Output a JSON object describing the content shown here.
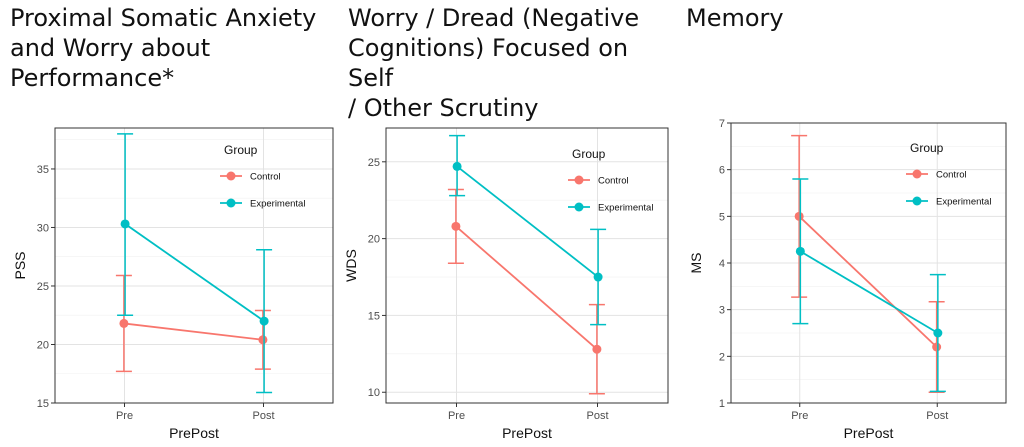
{
  "colors": {
    "Control": "#F8766D",
    "Experimental": "#00BFC4"
  },
  "chart_data": [
    {
      "type": "line",
      "title": "Proximal Somatic Anxiety\nand Worry about\nPerformance*",
      "xlabel": "PrePost",
      "ylabel": "PSS",
      "categories": [
        "Pre",
        "Post"
      ],
      "ylim": [
        15,
        38.5
      ],
      "yticks": [
        15,
        20,
        25,
        30,
        35
      ],
      "legend_title": "Group",
      "series": [
        {
          "name": "Control",
          "values": [
            21.8,
            20.4
          ],
          "err_low": [
            17.7,
            17.9
          ],
          "err_high": [
            25.9,
            22.9
          ]
        },
        {
          "name": "Experimental",
          "values": [
            30.3,
            22.0
          ],
          "err_low": [
            22.5,
            15.9
          ],
          "err_high": [
            38.0,
            28.1
          ]
        }
      ]
    },
    {
      "type": "line",
      "title": "Worry / Dread (Negative\nCognitions) Focused on Self\n/ Other Scrutiny",
      "xlabel": "PrePost",
      "ylabel": "WDS",
      "categories": [
        "Pre",
        "Post"
      ],
      "ylim": [
        9.3,
        27.2
      ],
      "yticks": [
        10,
        15,
        20,
        25
      ],
      "legend_title": "Group",
      "series": [
        {
          "name": "Control",
          "values": [
            20.8,
            12.8
          ],
          "err_low": [
            18.4,
            9.9
          ],
          "err_high": [
            23.2,
            15.7
          ]
        },
        {
          "name": "Experimental",
          "values": [
            24.7,
            17.5
          ],
          "err_low": [
            22.8,
            14.4
          ],
          "err_high": [
            26.7,
            20.6
          ]
        }
      ]
    },
    {
      "type": "line",
      "title": "Memory",
      "xlabel": "PrePost",
      "ylabel": "MS",
      "categories": [
        "Pre",
        "Post"
      ],
      "ylim": [
        1,
        7
      ],
      "yticks": [
        1,
        2,
        3,
        4,
        5,
        6,
        7
      ],
      "legend_title": "Group",
      "series": [
        {
          "name": "Control",
          "values": [
            5.0,
            2.2
          ],
          "err_low": [
            3.27,
            1.23
          ],
          "err_high": [
            6.73,
            3.17
          ]
        },
        {
          "name": "Experimental",
          "values": [
            4.25,
            2.5
          ],
          "err_low": [
            2.7,
            1.25
          ],
          "err_high": [
            5.8,
            3.75
          ]
        }
      ]
    }
  ]
}
